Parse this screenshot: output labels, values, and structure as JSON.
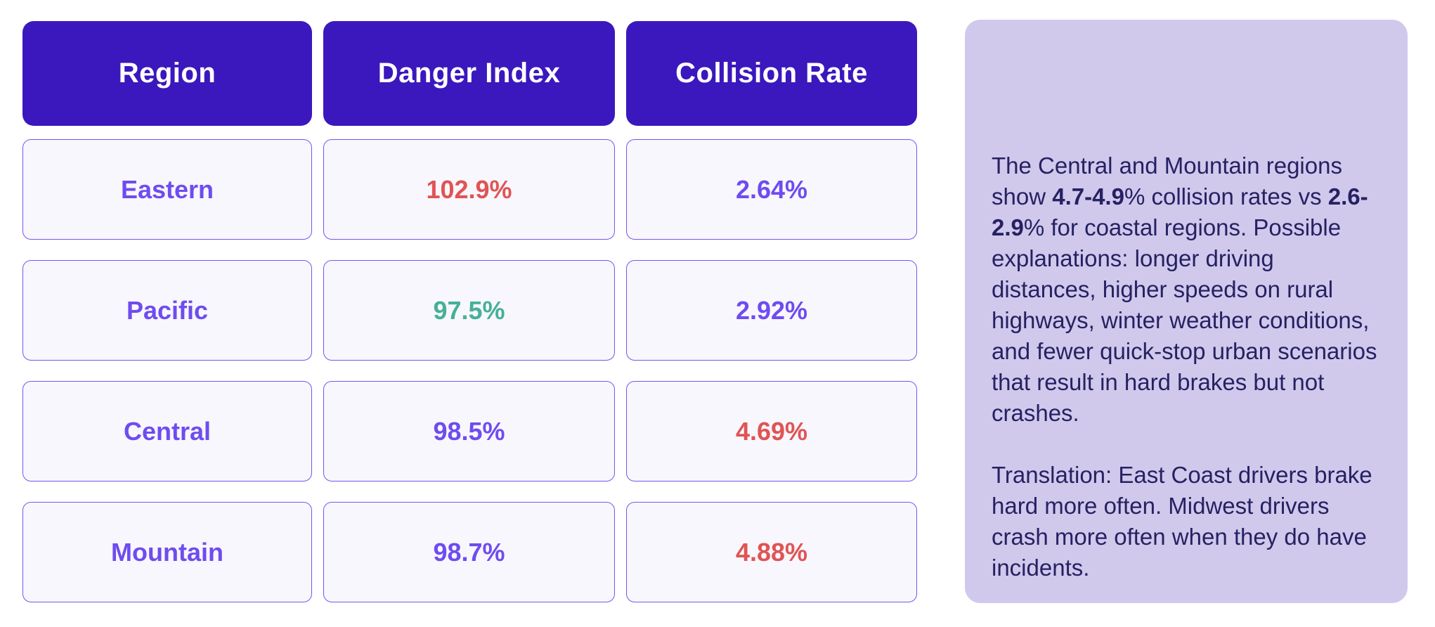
{
  "colors": {
    "header-bg": "#3b18bd",
    "header-text": "#ffffff",
    "cell-bg": "#f8f7fd",
    "cell-border": "#7a54ec",
    "purple": "#6e4cf0",
    "red": "#e05454",
    "teal": "#45b099",
    "panel-bg": "#d0c9ec",
    "panel-text": "#262162",
    "page-bg": "#ffffff"
  },
  "table": {
    "header": {
      "cells": [
        "Region",
        "Danger Index",
        "Collision Rate"
      ]
    },
    "rows": [
      {
        "cells": [
          {
            "text": "Eastern",
            "color": "purple"
          },
          {
            "text": "102.9%",
            "color": "red"
          },
          {
            "text": "2.64%",
            "color": "purple"
          }
        ]
      },
      {
        "cells": [
          {
            "text": "Pacific",
            "color": "purple"
          },
          {
            "text": "97.5%",
            "color": "teal"
          },
          {
            "text": "2.92%",
            "color": "purple"
          }
        ]
      },
      {
        "cells": [
          {
            "text": "Central",
            "color": "purple"
          },
          {
            "text": "98.5%",
            "color": "purple"
          },
          {
            "text": "4.69%",
            "color": "red"
          }
        ]
      },
      {
        "cells": [
          {
            "text": "Mountain",
            "color": "purple"
          },
          {
            "text": "98.7%",
            "color": "purple"
          },
          {
            "text": "4.88%",
            "color": "red"
          }
        ]
      }
    ]
  },
  "panel": {
    "paragraphs": [
      {
        "segments": [
          {
            "text": "The Central and Mountain regions show ",
            "bold": false
          },
          {
            "text": "4.7-4.9",
            "bold": true
          },
          {
            "text": "% collision rates vs ",
            "bold": false
          },
          {
            "text": "2.6-2.9",
            "bold": true
          },
          {
            "text": "% for coastal regions. Possible explanations: longer driving distances, higher speeds on rural highways, winter weather conditions, and fewer quick-stop urban scenarios that result in hard brakes but not crashes.",
            "bold": false
          }
        ]
      },
      {
        "segments": [
          {
            "text": "Translation: East Coast drivers brake hard more often. Midwest drivers crash more often when they do have incidents.",
            "bold": false
          }
        ]
      }
    ]
  },
  "chart_data": {
    "type": "table",
    "title": "",
    "columns": [
      "Region",
      "Danger Index",
      "Collision Rate"
    ],
    "rows": [
      {
        "region": "Eastern",
        "danger_index_pct": 102.9,
        "collision_rate_pct": 2.64
      },
      {
        "region": "Pacific",
        "danger_index_pct": 97.5,
        "collision_rate_pct": 2.92
      },
      {
        "region": "Central",
        "danger_index_pct": 98.5,
        "collision_rate_pct": 4.69
      },
      {
        "region": "Mountain",
        "danger_index_pct": 98.7,
        "collision_rate_pct": 4.88
      }
    ],
    "value_color_semantics": {
      "red": "elevated / worse value",
      "teal": "best / lowest danger index",
      "purple": "neutral value"
    }
  }
}
